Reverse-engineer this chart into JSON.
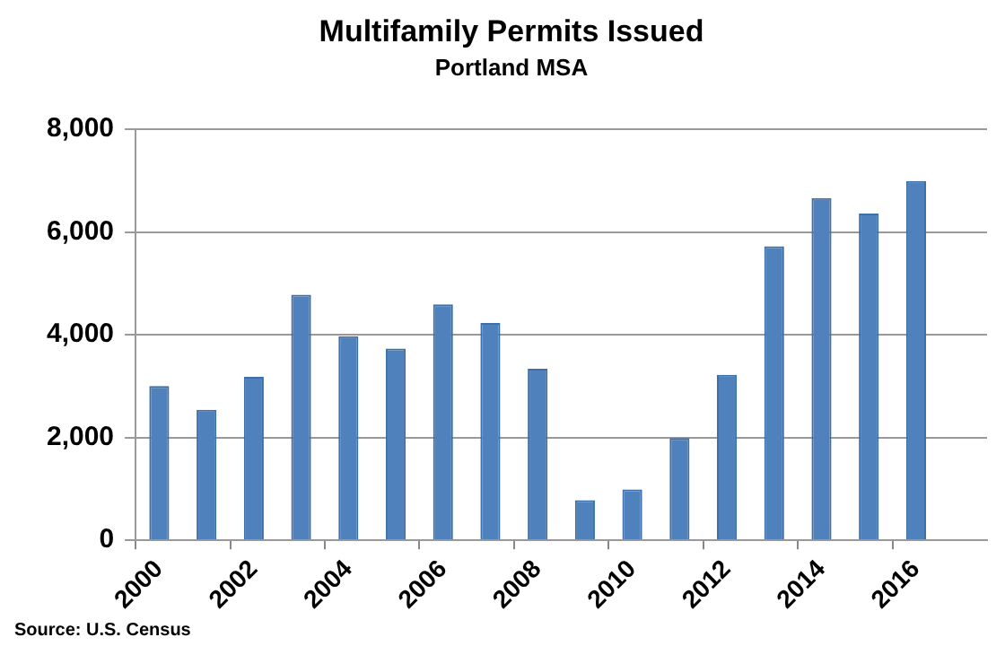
{
  "chart_data": {
    "type": "bar",
    "title": "Multifamily Permits Issued",
    "subtitle": "Portland MSA",
    "categories": [
      "2000",
      null,
      "2002",
      null,
      "2004",
      null,
      "2006",
      null,
      "2008",
      null,
      "2010",
      null,
      "2012",
      null,
      "2014",
      null,
      "2016",
      null
    ],
    "values": [
      3000,
      2540,
      3180,
      4780,
      3970,
      3730,
      4590,
      4230,
      3340,
      780,
      990,
      1990,
      3220,
      5720,
      6660,
      6360,
      6990,
      null
    ],
    "color": "#4f81bd",
    "ylim": [
      0,
      8000
    ],
    "yticks": [
      {
        "value": 0,
        "label": "0"
      },
      {
        "value": 2000,
        "label": "2,000"
      },
      {
        "value": 4000,
        "label": "4,000"
      },
      {
        "value": 6000,
        "label": "6,000"
      },
      {
        "value": 8000,
        "label": "8,000"
      }
    ],
    "grid": "y",
    "legend": false,
    "annotations": [
      "Source: U.S. Census"
    ]
  }
}
